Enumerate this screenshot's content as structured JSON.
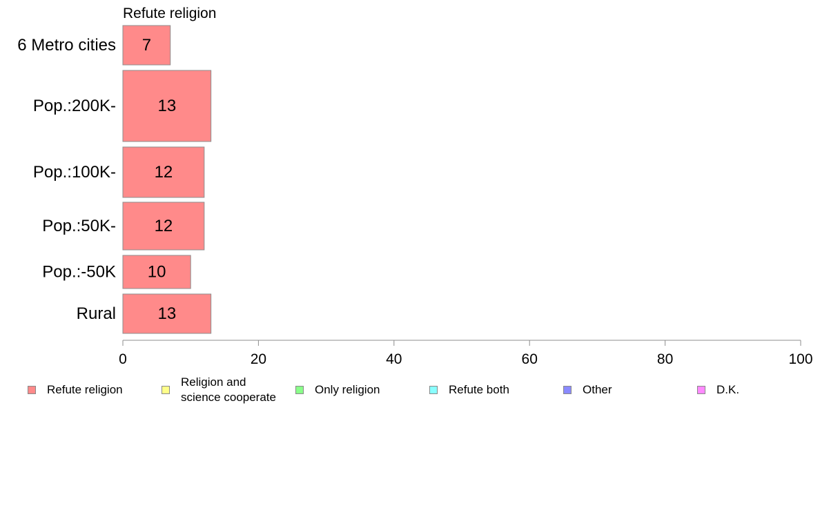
{
  "chart_data": {
    "type": "bar",
    "orientation": "horizontal",
    "title": "Refute religion",
    "categories": [
      "6 Metro cities",
      "Pop.:200K-",
      "Pop.:100K-",
      "Pop.:50K-",
      "Pop.:-50K",
      "Rural"
    ],
    "series": [
      {
        "name": "Refute religion",
        "values": [
          7,
          13,
          12,
          12,
          10,
          13
        ],
        "color": "#ff8a8a"
      }
    ],
    "xlim": [
      0,
      100
    ],
    "xticks": [
      "0",
      "20",
      "40",
      "60",
      "80",
      "100"
    ],
    "grid": false,
    "legend_placement": "bottom",
    "legend": [
      {
        "label": "Refute religion",
        "color": "#ff8a8a"
      },
      {
        "label": "Religion and\nscience cooperate",
        "color": "#ffff8a"
      },
      {
        "label": "Only religion",
        "color": "#8aff8a"
      },
      {
        "label": "Refute both",
        "color": "#8affff"
      },
      {
        "label": "Other",
        "color": "#8a8aff"
      },
      {
        "label": "D.K.",
        "color": "#ff8aff"
      }
    ]
  }
}
